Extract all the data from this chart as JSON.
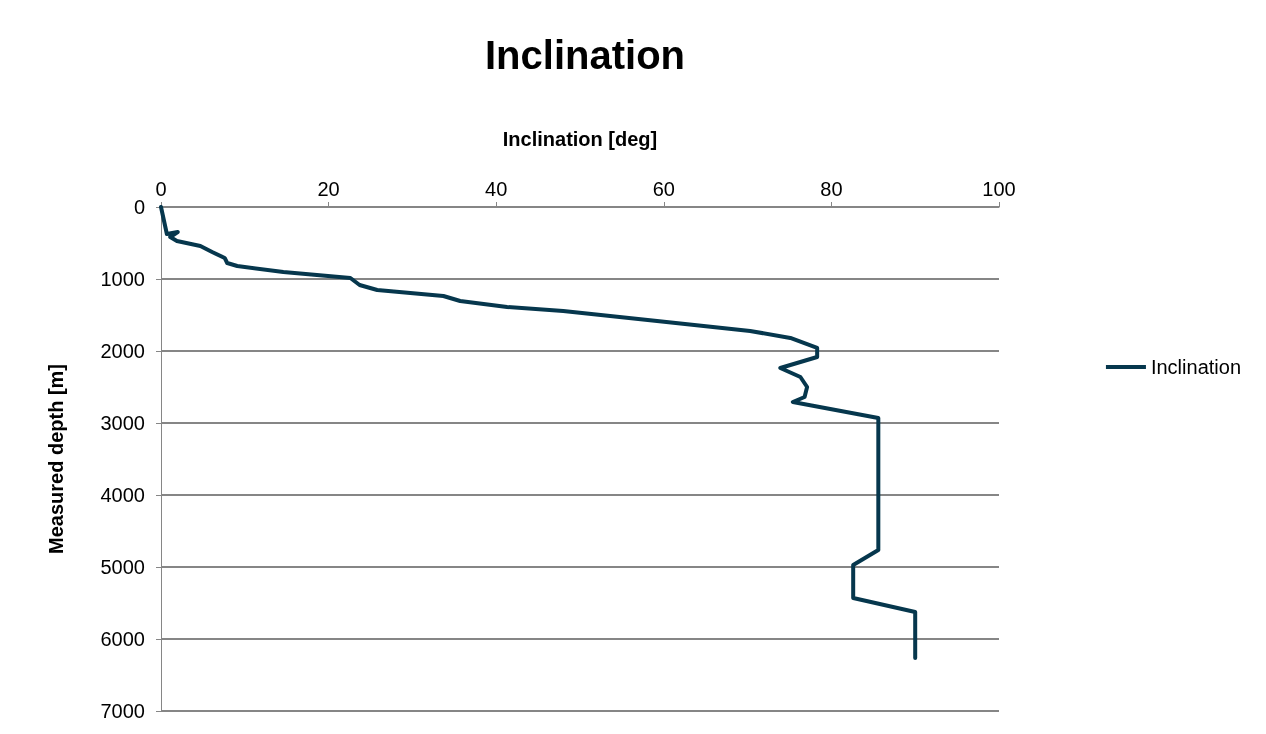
{
  "chart_data": {
    "type": "line",
    "title": "Inclination",
    "xlabel": "Inclination [deg]",
    "ylabel": "Measured depth [m]",
    "xlim": [
      0,
      100
    ],
    "xticks": [
      0,
      20,
      40,
      60,
      80,
      100
    ],
    "ylim": [
      7000,
      0
    ],
    "yticks": [
      0,
      1000,
      2000,
      3000,
      4000,
      5000,
      6000,
      7000
    ],
    "grid": "y",
    "legend": "right",
    "marker": "none",
    "line_style": "solid",
    "series": [
      {
        "name": "Inclination",
        "color": "#06374d",
        "x": [
          0,
          0.7,
          2.0,
          1.1,
          1.9,
          4.7,
          6.1,
          7.6,
          7.9,
          9.1,
          14.6,
          22.6,
          23.7,
          25.8,
          33.7,
          35.7,
          41.3,
          48.0,
          59.2,
          70.3,
          75.1,
          78.3,
          78.3,
          73.9,
          76.3,
          77.1,
          76.8,
          75.4,
          85.6,
          85.6,
          82.6,
          82.6,
          90.0,
          90.0
        ],
        "values": [
          0,
          375,
          347,
          417,
          472,
          542,
          625,
          708,
          778,
          819,
          903,
          986,
          1083,
          1153,
          1236,
          1306,
          1389,
          1444,
          1583,
          1722,
          1819,
          1958,
          2083,
          2236,
          2361,
          2500,
          2639,
          2708,
          2931,
          4764,
          4972,
          5431,
          5625,
          6264
        ]
      }
    ]
  }
}
